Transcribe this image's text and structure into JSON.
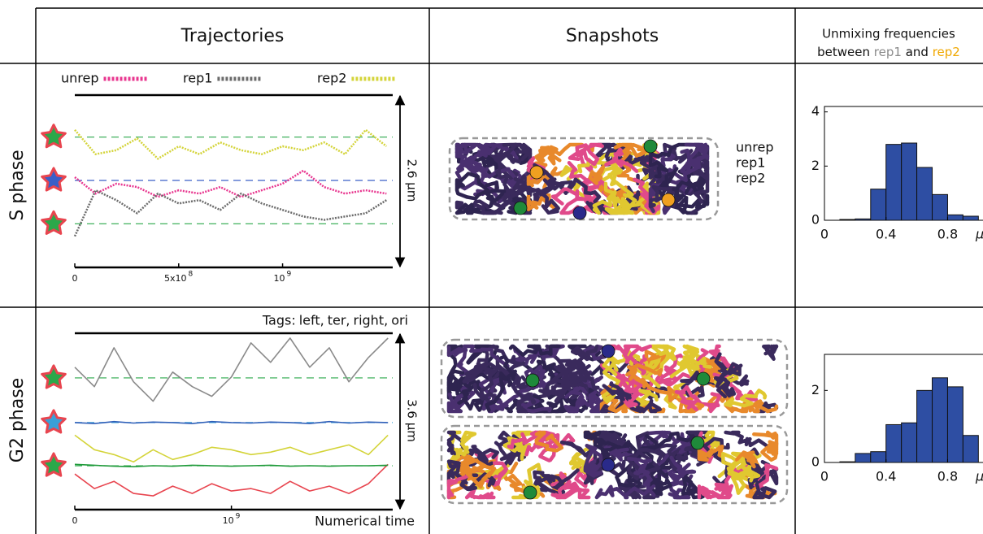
{
  "header": {
    "trajectories": "Trajectories",
    "snapshots": "Snapshots",
    "unmixing": {
      "line1": "Unmixing frequencies",
      "between": "between",
      "rep1": "rep1",
      "and": "and",
      "rep2": "rep2"
    }
  },
  "rows": [
    {
      "label": "S phase",
      "trajectories": {
        "x": [
          0,
          100000000,
          200000000,
          300000000,
          400000000,
          500000000,
          600000000,
          700000000,
          800000000,
          900000000,
          1000000000,
          1100000000,
          1200000000,
          1300000000,
          1400000000,
          1500000000
        ],
        "series": [
          {
            "name": "unrep",
            "color": "#e8368f",
            "values": [
              1.35,
              1.1,
              1.25,
              1.2,
              1.05,
              1.15,
              1.1,
              1.2,
              1.05,
              1.15,
              1.25,
              1.45,
              1.2,
              1.1,
              1.15,
              1.1
            ]
          },
          {
            "name": "rep1",
            "color": "#6b6b6b",
            "values": [
              0.45,
              1.15,
              1.0,
              0.8,
              1.1,
              0.95,
              1.0,
              0.85,
              1.1,
              0.95,
              0.85,
              0.75,
              0.7,
              0.75,
              0.8,
              1.0
            ]
          },
          {
            "name": "rep2",
            "color": "#d4d43a",
            "values": [
              2.07,
              1.7,
              1.76,
              1.94,
              1.63,
              1.82,
              1.7,
              1.88,
              1.76,
              1.7,
              1.82,
              1.76,
              1.88,
              1.7,
              2.07,
              1.82
            ]
          }
        ],
        "xlim": [
          0,
          1530000000
        ],
        "ylim": [
          0,
          2.6
        ],
        "xticks": [
          {
            "value": 0,
            "label": "0"
          },
          {
            "value": 500000000,
            "label": "5x10",
            "exp": "8"
          },
          {
            "value": 1000000000,
            "label": "10",
            "exp": "9"
          }
        ],
        "span_label": "2.6 µm",
        "tags": [
          {
            "value": 1.96,
            "color": "#2ba84a"
          },
          {
            "value": 1.3,
            "color": "#3a5fc8"
          },
          {
            "value": 0.64,
            "color": "#2ba84a"
          }
        ]
      },
      "snapshot": {
        "legend": [
          {
            "name": "unrep",
            "color": "#e8368f"
          },
          {
            "name": "rep1",
            "color": "#5a3a8a"
          },
          {
            "name": "rep2",
            "color": "#e0c830"
          }
        ]
      },
      "histogram": {
        "bins": [
          0.1,
          0.2,
          0.3,
          0.4,
          0.5,
          0.6,
          0.7,
          0.8,
          0.9,
          1.0
        ],
        "values": [
          0.03,
          0.05,
          1.15,
          2.8,
          2.85,
          1.95,
          0.95,
          0.2,
          0.15
        ],
        "xlim": [
          0,
          1.03
        ],
        "ylim": [
          0,
          4.2
        ],
        "xticks": [
          0,
          0.4,
          0.8
        ],
        "yticks": [
          0,
          2,
          4
        ],
        "xlabel": "μ",
        "color": "#2e4ea3"
      }
    },
    {
      "label": "G2 phase",
      "trajectories": {
        "x": [
          0,
          125000000,
          250000000,
          375000000,
          500000000,
          625000000,
          750000000,
          875000000,
          1000000000,
          1125000000,
          1250000000,
          1375000000,
          1500000000,
          1625000000,
          1750000000,
          1875000000,
          2000000000
        ],
        "tags_label": "Tags:",
        "series": [
          {
            "name": "left,",
            "color": "#8a8a8a",
            "values": [
              2.9,
              2.5,
              3.3,
              2.6,
              2.2,
              2.8,
              2.5,
              2.3,
              2.7,
              3.4,
              3.0,
              3.5,
              2.9,
              3.3,
              2.6,
              3.1,
              3.5
            ]
          },
          {
            "name": "ter,",
            "color": "#2f5fb8",
            "values": [
              1.76,
              1.74,
              1.78,
              1.75,
              1.77,
              1.76,
              1.74,
              1.78,
              1.76,
              1.75,
              1.77,
              1.76,
              1.74,
              1.78,
              1.75,
              1.77,
              1.76
            ]
          },
          {
            "name": "right,",
            "color": "#e8454f",
            "values": [
              0.7,
              0.4,
              0.55,
              0.3,
              0.25,
              0.45,
              0.3,
              0.5,
              0.35,
              0.4,
              0.3,
              0.55,
              0.35,
              0.45,
              0.3,
              0.5,
              0.9
            ]
          },
          {
            "name": "ori",
            "color": "#1f9a3a",
            "values": [
              0.9,
              0.88,
              0.86,
              0.85,
              0.87,
              0.86,
              0.88,
              0.87,
              0.86,
              0.87,
              0.88,
              0.86,
              0.87,
              0.86,
              0.87,
              0.87,
              0.88
            ]
          },
          {
            "color": "#d4d43a",
            "values": [
              1.5,
              1.2,
              1.1,
              0.95,
              1.2,
              1.0,
              1.1,
              1.25,
              1.2,
              1.1,
              1.15,
              1.25,
              1.1,
              1.2,
              1.3,
              1.1,
              1.5
            ]
          }
        ],
        "xlim": [
          0,
          2030000000
        ],
        "ylim": [
          0,
          3.6
        ],
        "xticks": [
          {
            "value": 0,
            "label": "0"
          },
          {
            "value": 1000000000,
            "label": "10",
            "exp": "9"
          }
        ],
        "xlabel": "Numerical time",
        "span_label": "3.6 µm",
        "tags": [
          {
            "value": 2.68,
            "color": "#2ba84a"
          },
          {
            "value": 1.76,
            "color": "#3aa0d8"
          },
          {
            "value": 0.87,
            "color": "#2ba84a"
          }
        ]
      },
      "histogram": {
        "bins": [
          0.1,
          0.2,
          0.3,
          0.4,
          0.5,
          0.6,
          0.7,
          0.8,
          0.9,
          1.0
        ],
        "values": [
          0.02,
          0.25,
          0.3,
          1.05,
          1.1,
          2.0,
          2.35,
          2.1,
          0.75
        ],
        "xlim": [
          0,
          1.03
        ],
        "ylim": [
          0,
          3.0
        ],
        "xticks": [
          0,
          0.4,
          0.8
        ],
        "yticks": [
          0,
          2
        ],
        "xlabel": "μ",
        "color": "#2e4ea3"
      }
    }
  ]
}
